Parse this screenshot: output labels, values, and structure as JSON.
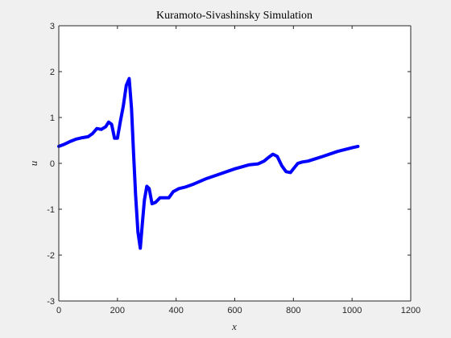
{
  "chart_data": {
    "type": "line",
    "title": "Kuramoto-Sivashinsky Simulation",
    "xlabel": "x",
    "ylabel": "u",
    "xlim": [
      0,
      1200
    ],
    "ylim": [
      -3,
      3
    ],
    "xticks": [
      "0",
      "200",
      "400",
      "600",
      "800",
      "1000",
      "1200"
    ],
    "yticks": [
      "-3",
      "-2",
      "-1",
      "0",
      "1",
      "2",
      "3"
    ],
    "grid": false,
    "colors": {
      "line": "#0000ff",
      "axes_bg": "#ffffff",
      "figure_bg": "#f0f0f0",
      "axis": "#262626"
    },
    "series": [
      {
        "x": [
          0,
          20,
          40,
          60,
          80,
          100,
          115,
          130,
          145,
          160,
          170,
          180,
          190,
          200,
          210,
          220,
          230,
          240,
          248,
          255,
          262,
          270,
          278,
          285,
          292,
          300,
          308,
          318,
          330,
          345,
          360,
          375,
          390,
          410,
          430,
          460,
          500,
          550,
          600,
          650,
          680,
          700,
          715,
          730,
          745,
          760,
          775,
          790,
          800,
          815,
          830,
          850,
          875,
          900,
          950,
          1000,
          1020
        ],
        "y": [
          0.37,
          0.42,
          0.48,
          0.53,
          0.56,
          0.58,
          0.65,
          0.76,
          0.74,
          0.8,
          0.9,
          0.85,
          0.55,
          0.55,
          0.92,
          1.25,
          1.7,
          1.85,
          1.2,
          0.2,
          -0.7,
          -1.5,
          -1.85,
          -1.3,
          -0.8,
          -0.5,
          -0.55,
          -0.88,
          -0.85,
          -0.75,
          -0.75,
          -0.75,
          -0.62,
          -0.55,
          -0.52,
          -0.45,
          -0.34,
          -0.23,
          -0.12,
          -0.03,
          -0.01,
          0.05,
          0.13,
          0.2,
          0.15,
          -0.05,
          -0.18,
          -0.2,
          -0.12,
          0.0,
          0.03,
          0.05,
          0.1,
          0.15,
          0.26,
          0.34,
          0.37
        ]
      }
    ]
  }
}
